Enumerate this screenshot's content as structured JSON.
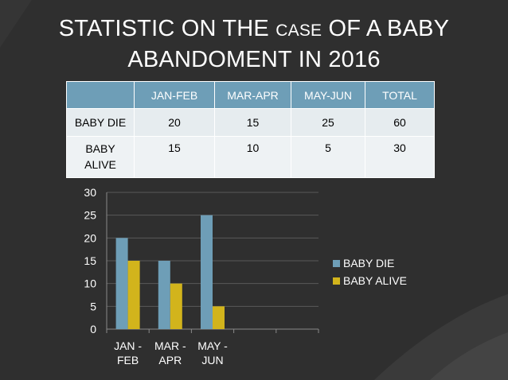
{
  "title": {
    "line1_before": "STATISTIC ON THE ",
    "line1_small": "CASE",
    "line1_after": " OF A BABY",
    "line2": "ABANDOMENT IN 2016"
  },
  "table": {
    "headers": [
      "",
      "JAN-FEB",
      "MAR-APR",
      "MAY-JUN",
      "TOTAL"
    ],
    "rows": [
      {
        "label": "BABY DIE",
        "values": [
          "20",
          "15",
          "25",
          "60"
        ]
      },
      {
        "label_line1": "BABY",
        "label_line2": "ALIVE",
        "values": [
          "15",
          "10",
          "5",
          "30"
        ]
      }
    ]
  },
  "chart_data": {
    "type": "bar",
    "categories": [
      {
        "line1": "JAN -",
        "line2": "FEB"
      },
      {
        "line1": "MAR -",
        "line2": "APR"
      },
      {
        "line1": "MAY -",
        "line2": "JUN"
      },
      {
        "line1": "",
        "line2": ""
      },
      {
        "line1": "",
        "line2": ""
      }
    ],
    "series": [
      {
        "name": "BABY DIE",
        "values": [
          20,
          15,
          25,
          null,
          null
        ],
        "color": "#6e9eb7"
      },
      {
        "name": "BABY ALIVE",
        "values": [
          15,
          10,
          5,
          null,
          null
        ],
        "color": "#d2b41c"
      }
    ],
    "ylim": [
      0,
      30
    ],
    "yticks": [
      "0",
      "5",
      "10",
      "15",
      "20",
      "25",
      "30"
    ],
    "grid": true,
    "legend": "right"
  }
}
